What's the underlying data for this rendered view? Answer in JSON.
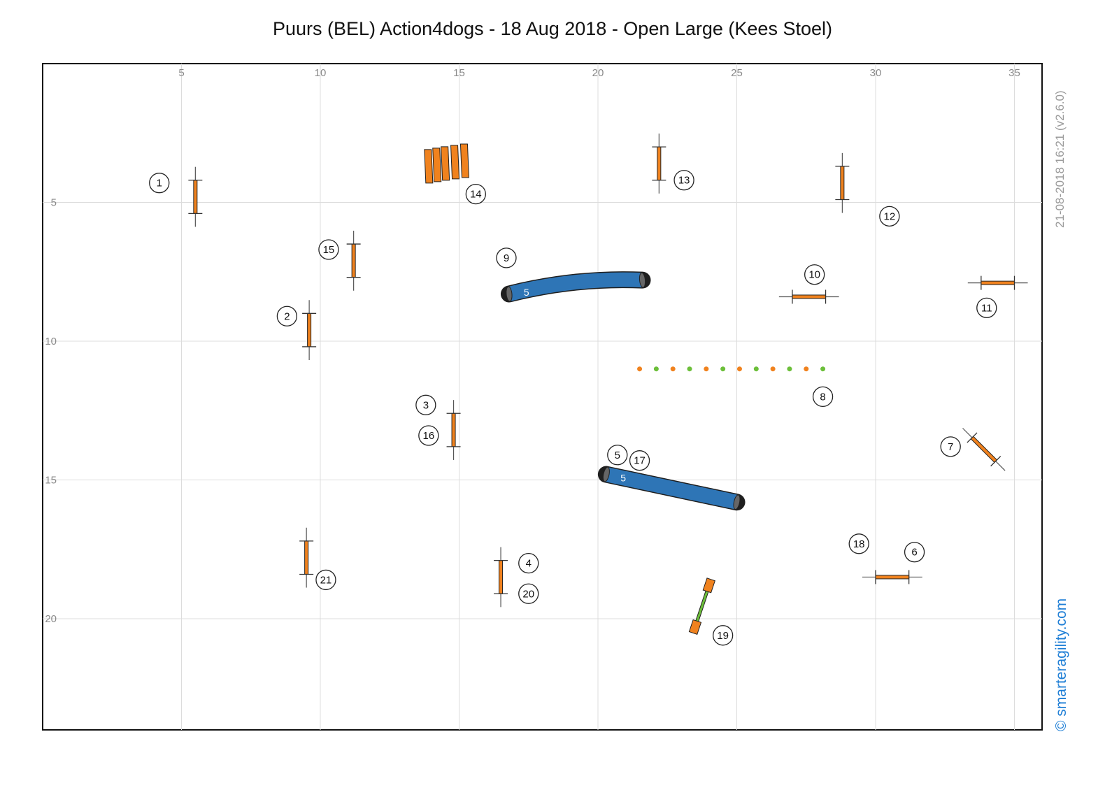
{
  "title": "Puurs (BEL) Action4dogs - 18 Aug 2018 - Open Large (Kees Stoel)",
  "timestamp": "21-08-2018 16:21   (v2.6.0)",
  "brand": "© smarteragility.com",
  "colors": {
    "obstacle_orange": "#f0821e",
    "tunnel_blue": "#2e75b6",
    "weave_green": "#6cbf3a",
    "grid": "#dcdcdc",
    "brand_blue": "#1f7fd6"
  },
  "axes": {
    "x_range": [
      0,
      36
    ],
    "y_range": [
      0,
      24
    ],
    "x_ticks": [
      "5",
      "10",
      "15",
      "20",
      "25",
      "30",
      "35"
    ],
    "x_tick_values": [
      5,
      10,
      15,
      20,
      25,
      30,
      35
    ],
    "y_ticks": [
      "5",
      "10",
      "15",
      "20"
    ],
    "y_tick_values": [
      5,
      10,
      15,
      20
    ]
  },
  "jumps": [
    {
      "x": 5.5,
      "y": 4.8,
      "angle": 90
    },
    {
      "x": 9.6,
      "y": 9.6,
      "angle": 90
    },
    {
      "x": 11.2,
      "y": 7.1,
      "angle": 90
    },
    {
      "x": 14.8,
      "y": 13.2,
      "angle": 90
    },
    {
      "x": 16.5,
      "y": 18.5,
      "angle": 90
    },
    {
      "x": 9.5,
      "y": 17.8,
      "angle": 90
    },
    {
      "x": 22.2,
      "y": 3.6,
      "angle": 90
    },
    {
      "x": 28.8,
      "y": 4.3,
      "angle": 90
    },
    {
      "x": 27.6,
      "y": 8.4,
      "angle": 0
    },
    {
      "x": 34.4,
      "y": 7.9,
      "angle": 0
    },
    {
      "x": 30.6,
      "y": 18.5,
      "angle": 0
    },
    {
      "x": 33.9,
      "y": 13.9,
      "angle": 45
    }
  ],
  "tunnels": [
    {
      "label": "5",
      "x1": 16.8,
      "y1": 8.3,
      "x2": 21.6,
      "y2": 7.8,
      "bend": -0.35
    },
    {
      "label": "5",
      "x1": 20.3,
      "y1": 14.8,
      "x2": 25.0,
      "y2": 15.8,
      "bend": 0
    }
  ],
  "weaves": [
    {
      "x1": 21.5,
      "y1": 11.0,
      "x2": 28.1,
      "y2": 11.0,
      "poles": 12
    }
  ],
  "tyre_panels": [
    {
      "x": 13.9,
      "y": 3.7
    },
    {
      "x": 14.2,
      "y": 3.65
    },
    {
      "x": 14.5,
      "y": 3.6
    },
    {
      "x": 14.85,
      "y": 3.55
    },
    {
      "x": 15.2,
      "y": 3.5
    }
  ],
  "seesaw": {
    "x1": 24.0,
    "y1": 18.8,
    "x2": 23.5,
    "y2": 20.3
  },
  "numbers": [
    {
      "label": "1",
      "x": 4.2,
      "y": 4.3
    },
    {
      "label": "2",
      "x": 8.8,
      "y": 9.1
    },
    {
      "label": "3",
      "x": 13.8,
      "y": 12.3
    },
    {
      "label": "4",
      "x": 17.5,
      "y": 18.0
    },
    {
      "label": "5",
      "x": 20.7,
      "y": 14.1
    },
    {
      "label": "6",
      "x": 31.4,
      "y": 17.6
    },
    {
      "label": "7",
      "x": 32.7,
      "y": 13.8
    },
    {
      "label": "8",
      "x": 28.1,
      "y": 12.0
    },
    {
      "label": "9",
      "x": 16.7,
      "y": 7.0
    },
    {
      "label": "10",
      "x": 27.8,
      "y": 7.6
    },
    {
      "label": "11",
      "x": 34.0,
      "y": 8.8
    },
    {
      "label": "12",
      "x": 30.5,
      "y": 5.5
    },
    {
      "label": "13",
      "x": 23.1,
      "y": 4.2
    },
    {
      "label": "14",
      "x": 15.6,
      "y": 4.7
    },
    {
      "label": "15",
      "x": 10.3,
      "y": 6.7
    },
    {
      "label": "16",
      "x": 13.9,
      "y": 13.4
    },
    {
      "label": "17",
      "x": 21.5,
      "y": 14.3
    },
    {
      "label": "18",
      "x": 29.4,
      "y": 17.3
    },
    {
      "label": "19",
      "x": 24.5,
      "y": 20.6
    },
    {
      "label": "20",
      "x": 17.5,
      "y": 19.1
    },
    {
      "label": "21",
      "x": 10.2,
      "y": 18.6
    }
  ]
}
